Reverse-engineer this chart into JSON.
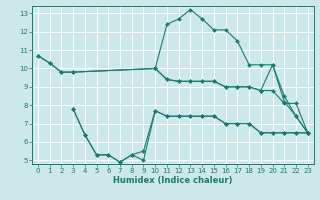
{
  "xlabel": "Humidex (Indice chaleur)",
  "bg_color": "#cce8e8",
  "grid_color": "#ffffff",
  "line_color": "#1a7a6e",
  "xlim": [
    -0.5,
    23.5
  ],
  "ylim": [
    4.8,
    13.4
  ],
  "xticks": [
    0,
    1,
    2,
    3,
    4,
    5,
    6,
    7,
    8,
    9,
    10,
    11,
    12,
    13,
    14,
    15,
    16,
    17,
    18,
    19,
    20,
    21,
    22,
    23
  ],
  "yticks": [
    5,
    6,
    7,
    8,
    9,
    10,
    11,
    12,
    13
  ],
  "lines": [
    {
      "x": [
        0,
        1,
        2,
        3,
        10,
        11,
        12,
        13,
        14,
        15,
        16,
        17,
        18,
        19,
        20,
        21,
        22,
        23
      ],
      "y": [
        10.7,
        10.3,
        9.8,
        9.8,
        10.0,
        9.4,
        9.3,
        9.3,
        9.3,
        9.3,
        9.0,
        9.0,
        9.0,
        8.8,
        8.8,
        8.1,
        8.1,
        6.5
      ]
    },
    {
      "x": [
        0,
        1,
        2,
        3,
        10,
        11,
        12,
        13,
        14,
        15,
        16,
        17,
        18,
        19,
        20,
        21,
        22,
        23
      ],
      "y": [
        10.7,
        10.3,
        9.8,
        9.8,
        10.0,
        9.4,
        9.3,
        9.3,
        9.3,
        9.3,
        9.0,
        9.0,
        9.0,
        8.8,
        10.2,
        8.5,
        7.4,
        6.5
      ]
    },
    {
      "x": [
        3,
        4,
        5,
        6,
        7,
        8,
        9,
        10,
        11,
        12,
        13,
        14,
        15,
        16,
        17,
        18,
        19,
        20,
        21,
        22,
        23
      ],
      "y": [
        7.8,
        6.4,
        5.3,
        5.3,
        4.9,
        5.3,
        5.5,
        7.7,
        7.4,
        7.4,
        7.4,
        7.4,
        7.4,
        7.0,
        7.0,
        7.0,
        6.5,
        6.5,
        6.5,
        6.5,
        6.5
      ]
    },
    {
      "x": [
        3,
        4,
        5,
        6,
        7,
        8,
        9,
        10,
        11,
        12,
        13,
        14,
        15,
        16,
        17,
        18,
        19,
        20,
        21,
        22,
        23
      ],
      "y": [
        7.8,
        6.4,
        5.3,
        5.3,
        4.9,
        5.3,
        5.0,
        7.7,
        7.4,
        7.4,
        7.4,
        7.4,
        7.4,
        7.0,
        7.0,
        7.0,
        6.5,
        6.5,
        6.5,
        6.5,
        6.5
      ]
    },
    {
      "x": [
        10,
        11,
        12,
        13,
        14,
        15,
        16,
        17,
        18,
        19,
        20,
        21,
        22,
        23
      ],
      "y": [
        10.0,
        12.4,
        12.7,
        13.2,
        12.7,
        12.1,
        12.1,
        11.5,
        10.2,
        10.2,
        10.2,
        8.2,
        7.4,
        6.5
      ]
    }
  ]
}
